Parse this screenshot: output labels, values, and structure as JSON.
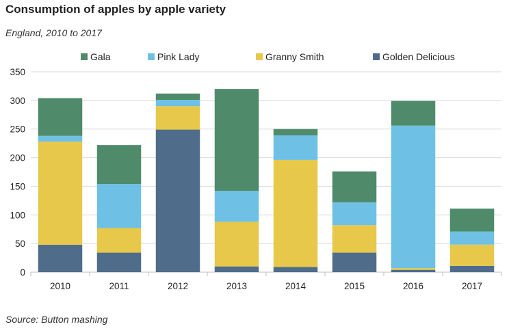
{
  "title": "Consumption of apples by apple variety",
  "subtitle": "England, 2010 to 2017",
  "source": "Source: Button mashing",
  "chart_data": {
    "type": "bar",
    "stacked": true,
    "title": "Consumption of apples by apple variety",
    "subtitle": "England, 2010 to 2017",
    "xlabel": "",
    "ylabel": "",
    "ylim": [
      0,
      350
    ],
    "yticks": [
      0,
      50,
      100,
      150,
      200,
      250,
      300,
      350
    ],
    "grid": true,
    "legend_position": "top",
    "categories": [
      "2010",
      "2011",
      "2012",
      "2013",
      "2014",
      "2015",
      "2016",
      "2017"
    ],
    "series": [
      {
        "name": "Golden Delicious",
        "color": "#4f6d8a",
        "values": [
          48,
          34,
          249,
          10,
          9,
          34,
          4,
          11
        ]
      },
      {
        "name": "Granny Smith",
        "color": "#e8c84a",
        "values": [
          180,
          43,
          41,
          78,
          187,
          48,
          3,
          37
        ]
      },
      {
        "name": "Pink Lady",
        "color": "#6ec1e4",
        "values": [
          10,
          77,
          11,
          54,
          43,
          40,
          249,
          23
        ]
      },
      {
        "name": "Gala",
        "color": "#4f8a6a",
        "values": [
          66,
          68,
          11,
          178,
          11,
          54,
          43,
          40
        ]
      }
    ],
    "legend_order": [
      "Gala",
      "Pink Lady",
      "Granny Smith",
      "Golden Delicious"
    ]
  }
}
